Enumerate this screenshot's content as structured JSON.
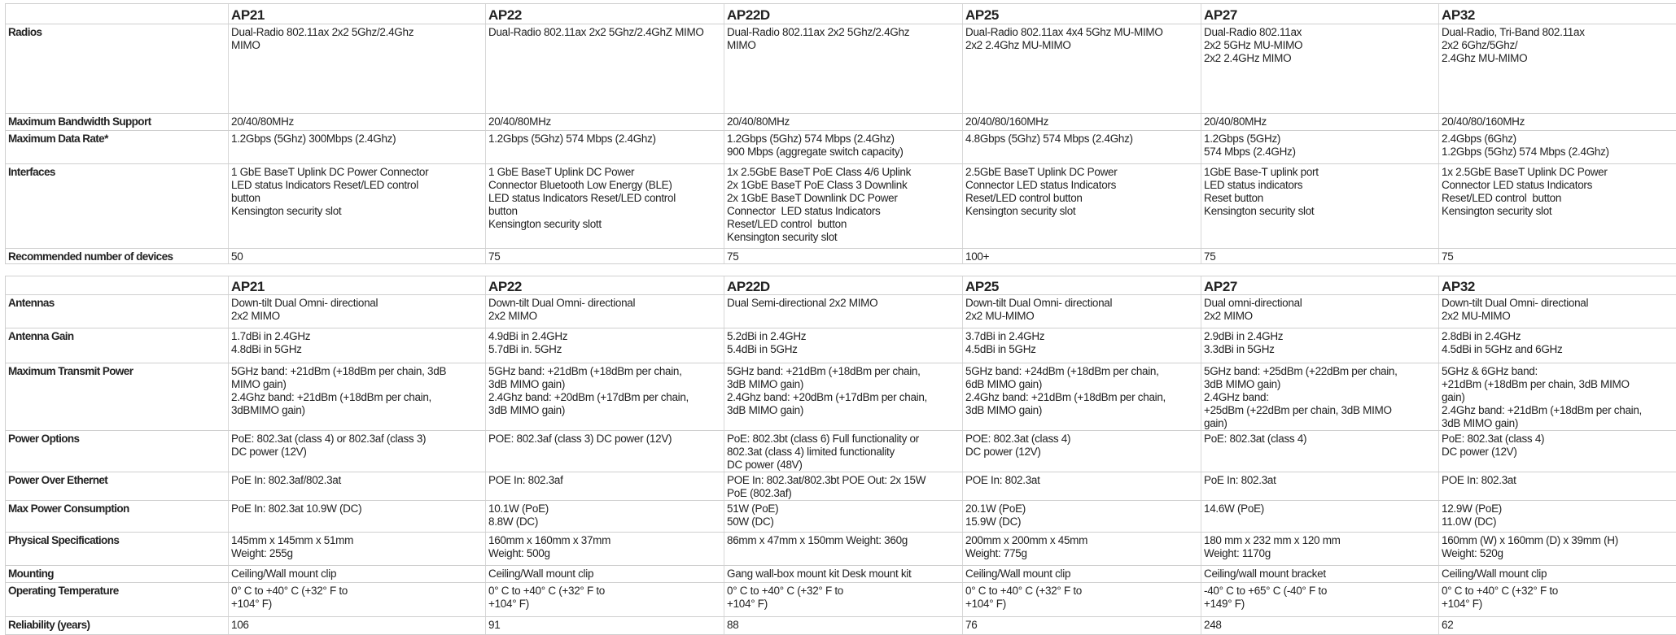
{
  "columns": [
    "AP21",
    "AP22",
    "AP22D",
    "AP25",
    "AP27",
    "AP32"
  ],
  "table1": [
    {
      "label": "Radios",
      "cells": [
        [
          "Dual-Radio 802.11ax 2x2 5Ghz/2.4Ghz",
          "MIMO"
        ],
        [
          "Dual-Radio 802.11ax 2x2 5Ghz/2.4GhZ MIMO"
        ],
        [
          "Dual-Radio 802.11ax 2x2 5Ghz/2.4Ghz",
          "MIMO"
        ],
        [
          "Dual-Radio 802.11ax 4x4 5Ghz MU-MIMO",
          "2x2 2.4Ghz MU-MIMO"
        ],
        [
          "Dual-Radio 802.11ax",
          "2x2 5GHz MU-MIMO",
          "2x2 2.4GHz MIMO"
        ],
        [
          "Dual-Radio, Tri-Band 802.11ax",
          "2x2 6Ghz/5Ghz/",
          "2.4Ghz MU-MIMO"
        ]
      ]
    },
    {
      "label": "Maximum Bandwidth Support",
      "cells": [
        [
          "20/40/80MHz"
        ],
        [
          "20/40/80MHz"
        ],
        [
          "20/40/80MHz"
        ],
        [
          "20/40/80/160MHz"
        ],
        [
          "20/40/80MHz"
        ],
        [
          "20/40/80/160MHz"
        ]
      ]
    },
    {
      "label": "Maximum Data Rate*",
      "cells": [
        [
          "1.2Gbps (5Ghz) 300Mbps (2.4Ghz)"
        ],
        [
          "1.2Gbps (5Ghz) 574 Mbps (2.4Ghz)"
        ],
        [
          "1.2Gbps (5Ghz) 574 Mbps (2.4Ghz)",
          "900 Mbps (aggregate switch capacity)"
        ],
        [
          "4.8Gbps (5Ghz) 574 Mbps (2.4Ghz)"
        ],
        [
          "1.2Gbps (5GHz)",
          "574 Mbps (2.4GHz)"
        ],
        [
          "2.4Gbps (6Ghz)",
          "1.2Gbps (5Ghz) 574 Mbps (2.4Ghz)"
        ]
      ]
    },
    {
      "label": "Interfaces",
      "cells": [
        [
          "1 GbE BaseT Uplink DC Power Connector",
          "LED status Indicators Reset/LED control",
          "button",
          "Kensington security slot"
        ],
        [
          "1 GbE BaseT Uplink DC Power",
          "Connector Bluetooth Low Energy (BLE)",
          "LED status Indicators Reset/LED control",
          "button",
          "Kensington security slott"
        ],
        [
          "1x 2.5GbE BaseT PoE Class 4/6 Uplink",
          "2x 1GbE BaseT PoE Class 3 Downlink",
          "2x 1GbE BaseT Downlink DC Power",
          "Connector  LED status Indicators",
          "Reset/LED control  button",
          "Kensington security slot"
        ],
        [
          "2.5GbE BaseT Uplink DC Power",
          "Connector LED status Indicators",
          "Reset/LED control button",
          "Kensington security slot"
        ],
        [
          "1GbE Base-T uplink port",
          "LED status indicators",
          "Reset button",
          "Kensington security slot"
        ],
        [
          "1x 2.5GbE BaseT Uplink DC Power",
          "Connector LED status Indicators",
          "Reset/LED control  button",
          "Kensington security slot"
        ]
      ]
    },
    {
      "label": "Recommended number of devices",
      "cells": [
        [
          "50"
        ],
        [
          "75"
        ],
        [
          "75"
        ],
        [
          "100+"
        ],
        [
          "75"
        ],
        [
          "75"
        ]
      ]
    }
  ],
  "table2": [
    {
      "label": "Antennas",
      "cells": [
        [
          "Down-tilt Dual Omni- directional",
          "2x2 MIMO"
        ],
        [
          "Down-tilt Dual Omni- directional",
          "2x2 MIMO"
        ],
        [
          "Dual Semi-directional 2x2 MIMO"
        ],
        [
          "Down-tilt Dual Omni- directional",
          "2x2 MU-MIMO"
        ],
        [
          "Dual omni-directional",
          "2x2 MIMO"
        ],
        [
          "Down-tilt Dual Omni- directional",
          "2x2 MU-MIMO"
        ]
      ]
    },
    {
      "label": "Antenna Gain",
      "cells": [
        [
          "1.7dBi in 2.4GHz",
          "4.8dBi in 5GHz"
        ],
        [
          "4.9dBi in 2.4GHz",
          "5.7dBi in. 5GHz"
        ],
        [
          "5.2dBi in 2.4GHz",
          "5.4dBi in 5GHz"
        ],
        [
          "3.7dBi in 2.4GHz",
          "4.5dBi in 5GHz"
        ],
        [
          "2.9dBi in 2.4GHz",
          "3.3dBi in 5GHz"
        ],
        [
          "2.8dBi in 2.4GHz",
          "4.5dBi in 5GHz and 6GHz"
        ]
      ]
    },
    {
      "label": "Maximum Transmit Power",
      "cells": [
        [
          "5GHz band: +21dBm (+18dBm per chain, 3dB",
          "MIMO gain)",
          "2.4Ghz band: +21dBm (+18dBm per chain,",
          "3dBMIMO gain)"
        ],
        [
          "5GHz band: +21dBm (+18dBm per chain,",
          "3dB MIMO gain)",
          "2.4Ghz band: +20dBm (+17dBm per chain,",
          "3dB MIMO gain)"
        ],
        [
          "5GHz band: +21dBm (+18dBm per chain,",
          "3dB MIMO gain)",
          "2.4Ghz band: +20dBm (+17dBm per chain,",
          "3dB MIMO gain)"
        ],
        [
          "5GHz band: +24dBm (+18dBm per chain,",
          "6dB MIMO gain)",
          "2.4Ghz band: +21dBm (+18dBm per chain,",
          "3dB MIMO gain)"
        ],
        [
          "5GHz band: +25dBm (+22dBm per chain,",
          "3dB MIMO gain)",
          "2.4GHz band:",
          "+25dBm (+22dBm per chain, 3dB MIMO",
          "gain)"
        ],
        [
          "5GHz & 6GHz band:",
          "+21dBm (+18dBm per chain, 3dB MIMO",
          "gain)",
          "2.4Ghz band: +21dBm (+18dBm per chain,",
          "3dB MIMO gain)"
        ]
      ]
    },
    {
      "label": "Power Options",
      "cells": [
        [
          "PoE: 802.3at (class 4) or 802.3af (class 3)",
          "DC power (12V)"
        ],
        [
          "POE: 802.3af (class 3) DC power (12V)"
        ],
        [
          "PoE: 802.3bt (class 6) Full functionality or",
          "802.3at (class 4) limited functionality",
          "DC power (48V)"
        ],
        [
          "POE: 802.3at (class 4)",
          "DC power (12V)"
        ],
        [
          "PoE: 802.3at (class 4)"
        ],
        [
          "PoE: 802.3at (class 4)",
          "DC power (12V)"
        ]
      ]
    },
    {
      "label": "Power Over Ethernet",
      "cells": [
        [
          "PoE In: 802.3af/802.3at"
        ],
        [
          "POE In: 802.3af"
        ],
        [
          "POE In: 802.3at/802.3bt POE Out: 2x 15W",
          "PoE (802.3af)"
        ],
        [
          "POE In: 802.3at"
        ],
        [
          "PoE In: 802.3at"
        ],
        [
          "POE In: 802.3at"
        ]
      ]
    },
    {
      "label": "Max Power Consumption",
      "cells": [
        [
          "PoE In: 802.3at 10.9W (DC)"
        ],
        [
          "10.1W (PoE)",
          "8.8W (DC)"
        ],
        [
          "51W (PoE)",
          "50W (DC)"
        ],
        [
          "20.1W (PoE)",
          "15.9W (DC)"
        ],
        [
          "14.6W (PoE)"
        ],
        [
          "12.9W (PoE)",
          "11.0W (DC)"
        ]
      ]
    },
    {
      "label": "Physical Specifications",
      "cells": [
        [
          "145mm x 145mm x 51mm",
          "Weight: 255g"
        ],
        [
          "160mm x 160mm x 37mm",
          "Weight: 500g"
        ],
        [
          "86mm x 47mm x 150mm Weight: 360g"
        ],
        [
          "200mm x 200mm x 45mm",
          "Weight: 775g"
        ],
        [
          "180 mm x 232 mm x 120 mm",
          "Weight: 1170g"
        ],
        [
          "160mm (W) x 160mm (D) x 39mm (H)",
          "Weight: 520g"
        ]
      ]
    },
    {
      "label": "Mounting",
      "cells": [
        [
          "Ceiling/Wall mount clip"
        ],
        [
          "Ceiling/Wall mount clip"
        ],
        [
          "Gang wall-box mount kit Desk mount kit"
        ],
        [
          "Ceiling/Wall mount clip"
        ],
        [
          "Ceiling/wall mount bracket"
        ],
        [
          "Ceiling/Wall mount clip"
        ]
      ]
    },
    {
      "label": "Operating Temperature",
      "cells": [
        [
          "0° C to +40° C (+32° F to",
          "+104° F)"
        ],
        [
          "0° C to +40° C (+32° F to",
          "+104° F)"
        ],
        [
          "0° C to +40° C (+32° F to",
          "+104° F)"
        ],
        [
          "0° C to +40° C (+32° F to",
          "+104° F)"
        ],
        [
          "-40° C to +65° C (-40° F to",
          "+149° F)"
        ],
        [
          "0° C to +40° C (+32° F to",
          "+104° F)"
        ]
      ]
    },
    {
      "label": "Reliability (years)",
      "cells": [
        [
          "106"
        ],
        [
          "91"
        ],
        [
          "88"
        ],
        [
          "76"
        ],
        [
          "248"
        ],
        [
          "62"
        ]
      ]
    }
  ]
}
